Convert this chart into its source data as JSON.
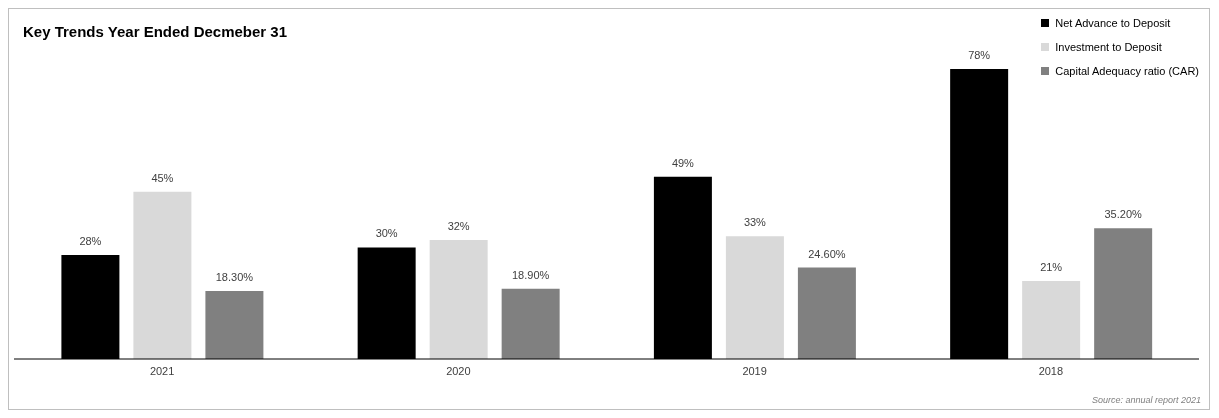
{
  "chart_data": {
    "type": "bar",
    "title": "Key Trends Year Ended Decmeber 31",
    "categories": [
      "2021",
      "2020",
      "2019",
      "2018"
    ],
    "series": [
      {
        "name": "Net Advance to Deposit",
        "color": "#000000",
        "values": [
          28,
          30,
          49,
          78
        ],
        "value_labels": [
          "28%",
          "30%",
          "49%",
          "78%"
        ]
      },
      {
        "name": "Investment to Deposit",
        "color": "#d9d9d9",
        "values": [
          45,
          32,
          33,
          21
        ],
        "value_labels": [
          "45%",
          "32%",
          "33%",
          "21%"
        ]
      },
      {
        "name": "Capital Adequacy ratio (CAR)",
        "color": "#808080",
        "values": [
          18.3,
          18.9,
          24.6,
          35.2
        ],
        "value_labels": [
          "18.30%",
          "18.90%",
          "24.60%",
          "35.20%"
        ]
      }
    ],
    "legend": "top right",
    "grid": false,
    "tick_labels": "x",
    "annotations": [
      "Source: annual report 2021"
    ]
  }
}
